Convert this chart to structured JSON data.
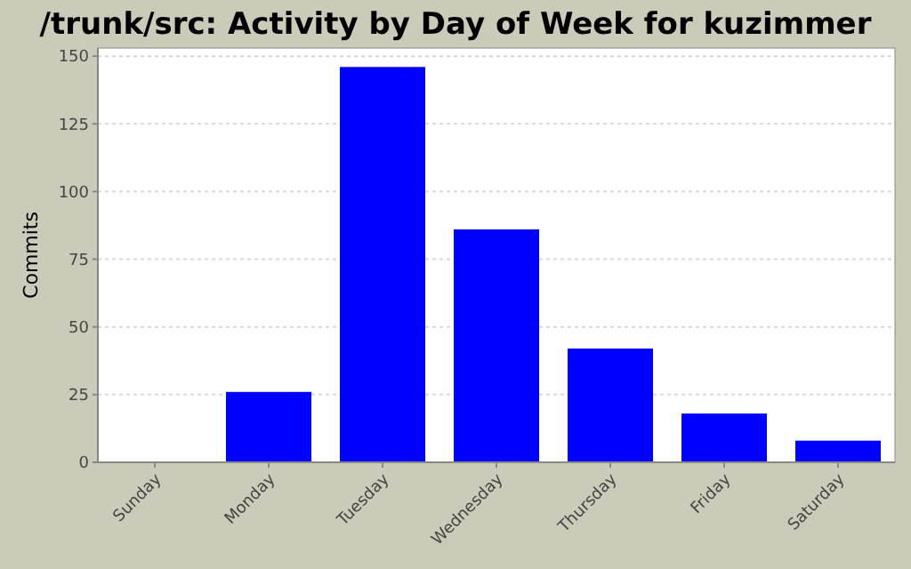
{
  "chart_data": {
    "type": "bar",
    "title": "/trunk/src: Activity by Day of Week for kuzimmer",
    "ylabel": "Commits",
    "categories": [
      "Sunday",
      "Monday",
      "Tuesday",
      "Wednesday",
      "Thursday",
      "Friday",
      "Saturday"
    ],
    "values": [
      0,
      26,
      146,
      86,
      42,
      18,
      8
    ],
    "color": "#0000ff",
    "ylim": [
      0,
      153
    ],
    "yticks": [
      0,
      25,
      50,
      75,
      100,
      125,
      150
    ],
    "grid": "y"
  }
}
